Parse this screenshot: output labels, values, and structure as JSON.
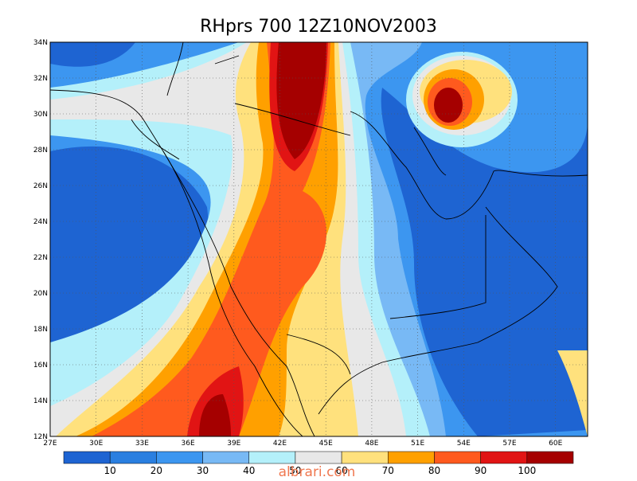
{
  "title": "RHprs 700 12Z10NOV2003",
  "x_axis": {
    "labels": [
      "27E",
      "30E",
      "33E",
      "36E",
      "39E",
      "42E",
      "45E",
      "48E",
      "51E",
      "54E",
      "57E",
      "60E"
    ]
  },
  "y_axis": {
    "labels": [
      "12N",
      "14N",
      "16N",
      "18N",
      "20N",
      "22N",
      "24N",
      "26N",
      "28N",
      "30N",
      "32N",
      "34N"
    ]
  },
  "colorbar": {
    "labels": [
      "10",
      "20",
      "30",
      "40",
      "50",
      "60",
      "70",
      "80",
      "90",
      "100"
    ]
  },
  "watermark": "albrari.com"
}
